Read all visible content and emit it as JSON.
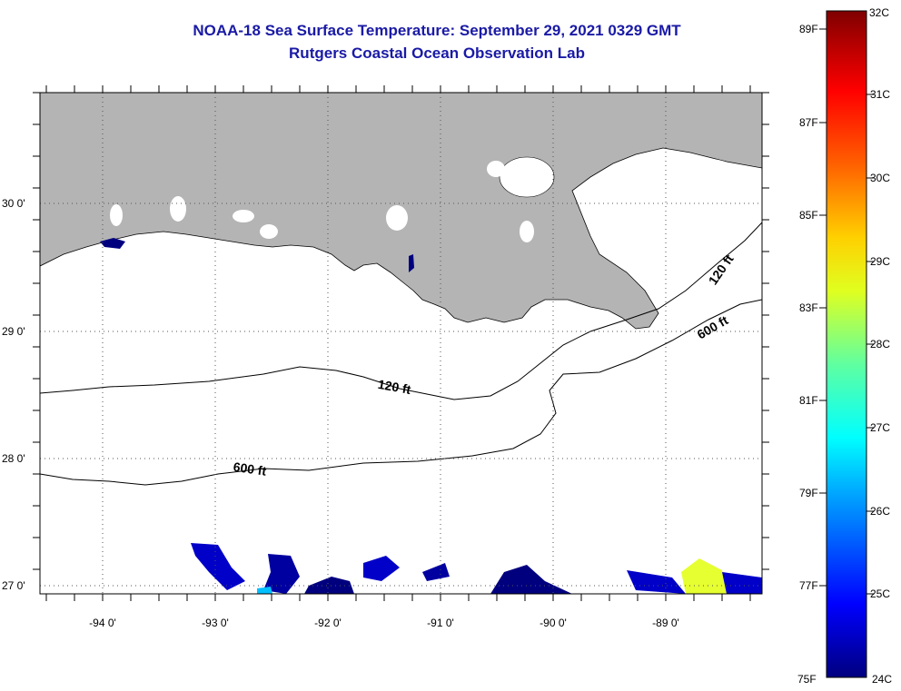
{
  "title": "NOAA-18 Sea Surface Temperature:  September 29, 2021 0329 GMT",
  "subtitle": "Rutgers Coastal Ocean Observation Lab",
  "map": {
    "lat_labels": [
      "30 0'",
      "29 0'",
      "28 0'",
      "27 0'"
    ],
    "lon_labels": [
      "-94 0'",
      "-93 0'",
      "-92 0'",
      "-91 0'",
      "-90 0'",
      "-89 0'"
    ],
    "isobath_labels": [
      "120 ft",
      "600 ft",
      "120 ft",
      "600 ft"
    ],
    "land_color": "#b4b4b4",
    "cloud_color": "#ffffff"
  },
  "colorbar": {
    "top_c": "32C",
    "bottom_c": "24C",
    "celsius_labels": [
      "31C",
      "30C",
      "29C",
      "28C",
      "27C",
      "26C",
      "25C"
    ],
    "fahrenheit_labels": [
      "89F",
      "87F",
      "85F",
      "83F",
      "81F",
      "79F",
      "77F",
      "75F"
    ],
    "colors": [
      "#00007f",
      "#0000ff",
      "#00b0ff",
      "#00ffff",
      "#60ffa0",
      "#e0ff20",
      "#ffd000",
      "#ff6000",
      "#ff0000",
      "#7f0000"
    ]
  }
}
